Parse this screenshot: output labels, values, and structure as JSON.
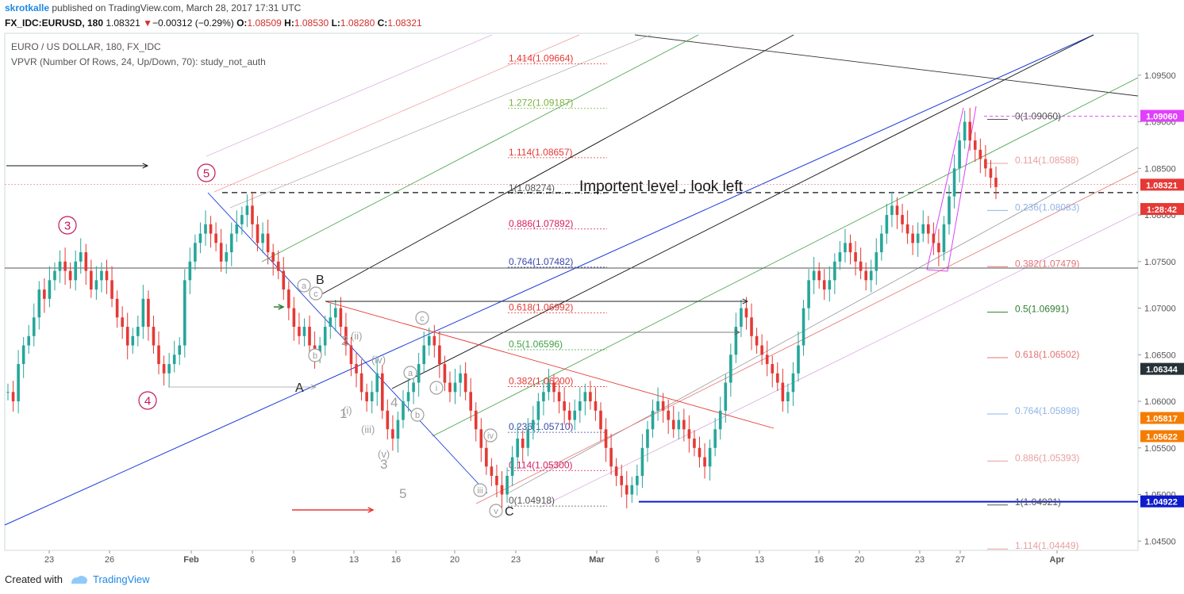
{
  "header": {
    "author": "skrotkalle",
    "published": " published on TradingView.com, March 28, 2017 17:31 UTC",
    "symbol": "FX_IDC:EURUSD, 180",
    "last": "1.08321",
    "change": "−0.00312 (−0.29%)",
    "ohlc": "O:1.08509 H:1.08530 L:1.08280 C:1.08321",
    "o_label": "O:",
    "o": "1.08509",
    "h_label": "H:",
    "h": "1.08530",
    "l_label": "L:",
    "l": "1.08280",
    "c_label": "C:",
    "c": "1.08321"
  },
  "footer": {
    "created_with": "Created with",
    "brand": "TradingView"
  },
  "colors": {
    "up": "#26a69a",
    "down": "#e53935",
    "accent": "#1e88e5",
    "fib_pink": "#e040fb"
  },
  "chart_data": {
    "type": "candlestick",
    "title": "EURO / US DOLLAR, 180, FX_IDC",
    "subtitle": "VPVR (Number Of Rows, 24, Up/Down, 70): study_not_auth",
    "ylim": [
      1.044,
      1.0995
    ],
    "y_ticks": [
      "1.09500",
      "1.09000",
      "1.08500",
      "1.08000",
      "1.07500",
      "1.07000",
      "1.06500",
      "1.06000",
      "1.05500",
      "1.05000",
      "1.04500"
    ],
    "y_tick_values": [
      1.095,
      1.09,
      1.085,
      1.08,
      1.075,
      1.07,
      1.065,
      1.06,
      1.055,
      1.05,
      1.045
    ],
    "x_ticks": [
      "23",
      "26",
      "Feb",
      "6",
      "9",
      "13",
      "16",
      "20",
      "23",
      "Mar",
      "6",
      "9",
      "13",
      "16",
      "20",
      "23",
      "27",
      "Apr"
    ],
    "x_tick_bold": [
      "Feb",
      "Mar",
      "Apr"
    ],
    "price_labels": [
      {
        "text": "1.09060",
        "value": 1.0906,
        "color": "#e040fb"
      },
      {
        "text": "1.08321",
        "value": 1.08321,
        "color": "#e53935"
      },
      {
        "text": "1:28:42",
        "value": 1.0806,
        "color": "#e53935"
      },
      {
        "text": "1.06344",
        "value": 1.06344,
        "color": "#263238"
      },
      {
        "text": "1.05817",
        "value": 1.05817,
        "color": "#f57c00"
      },
      {
        "text": "1.05622",
        "value": 1.05622,
        "color": "#f57c00"
      },
      {
        "text": "1.04922",
        "value": 1.04922,
        "color": "#0d1bcc"
      }
    ],
    "fib_left": [
      {
        "label": "1.414(1.09664)",
        "value": 1.09664,
        "color": "#e53935"
      },
      {
        "label": "1.272(1.09187)",
        "value": 1.09187,
        "color": "#7cb342"
      },
      {
        "label": "1.114(1.08657)",
        "value": 1.08657,
        "color": "#e53935"
      },
      {
        "label": "1(1.08274)",
        "value": 1.08274,
        "color": "#555555"
      },
      {
        "label": "0.886(1.07892)",
        "value": 1.07892,
        "color": "#d81b60"
      },
      {
        "label": "0.764(1.07482)",
        "value": 1.07482,
        "color": "#3949ab"
      },
      {
        "label": "0.618(1.06992)",
        "value": 1.06992,
        "color": "#e53935"
      },
      {
        "label": "0.5(1.06596)",
        "value": 1.06596,
        "color": "#43a047"
      },
      {
        "label": "0.382(1.06200)",
        "value": 1.062,
        "color": "#e53935"
      },
      {
        "label": "0.236(1.05710)",
        "value": 1.0571,
        "color": "#3949ab"
      },
      {
        "label": "0.114(1.05300)",
        "value": 1.053,
        "color": "#d81b60"
      },
      {
        "label": "0(1.04918)",
        "value": 1.04918,
        "color": "#555555"
      }
    ],
    "fib_right": [
      {
        "label": "0(1.09060)",
        "value": 1.0906,
        "color": "#555555"
      },
      {
        "label": "0.114(1.08588)",
        "value": 1.08588,
        "color": "#e8a0a0"
      },
      {
        "label": "0.236(1.08083)",
        "value": 1.08083,
        "color": "#90b4e8"
      },
      {
        "label": "0.382(1.07479)",
        "value": 1.07479,
        "color": "#e57373"
      },
      {
        "label": "0.5(1.06991)",
        "value": 1.06991,
        "color": "#2e7d32"
      },
      {
        "label": "0.618(1.06502)",
        "value": 1.06502,
        "color": "#e57373"
      },
      {
        "label": "0.764(1.05898)",
        "value": 1.05898,
        "color": "#90b4e8"
      },
      {
        "label": "0.886(1.05393)",
        "value": 1.05393,
        "color": "#e8a0a0"
      },
      {
        "label": "1(1.04921)",
        "value": 1.04921,
        "color": "#555555"
      },
      {
        "label": "1.114(1.04449)",
        "value": 1.04449,
        "color": "#e8a0a0"
      }
    ],
    "important_level": {
      "label": "Importent level , look left",
      "value": 1.0824
    },
    "support_level": 1.04922,
    "horizontal_line": 1.0743,
    "wave_labels_major": [
      "3",
      "4",
      "5"
    ],
    "wave_labels_abc": [
      "A",
      "B",
      "C"
    ],
    "wave_labels_minor_grey": [
      "1",
      "2",
      "3",
      "4",
      "5"
    ],
    "wave_labels_roman": [
      "(i)",
      "(ii)",
      "(iii)",
      "(iv)",
      "(v)"
    ],
    "wave_labels_circle": [
      "a",
      "b",
      "c",
      "i",
      "ii",
      "iii",
      "iv",
      "v"
    ],
    "close_series": [
      1.061,
      1.06,
      1.064,
      1.066,
      1.067,
      1.069,
      1.072,
      1.071,
      1.073,
      1.074,
      1.075,
      1.074,
      1.073,
      1.075,
      1.076,
      1.074,
      1.072,
      1.073,
      1.074,
      1.073,
      1.071,
      1.069,
      1.068,
      1.066,
      1.067,
      1.068,
      1.071,
      1.068,
      1.066,
      1.064,
      1.063,
      1.064,
      1.065,
      1.066,
      1.073,
      1.075,
      1.077,
      1.078,
      1.079,
      1.078,
      1.077,
      1.075,
      1.076,
      1.078,
      1.079,
      1.08,
      1.081,
      1.079,
      1.077,
      1.078,
      1.076,
      1.075,
      1.074,
      1.072,
      1.07,
      1.068,
      1.067,
      1.068,
      1.066,
      1.065,
      1.066,
      1.068,
      1.069,
      1.07,
      1.068,
      1.066,
      1.064,
      1.063,
      1.061,
      1.06,
      1.061,
      1.063,
      1.059,
      1.057,
      1.056,
      1.058,
      1.06,
      1.061,
      1.062,
      1.064,
      1.066,
      1.067,
      1.066,
      1.064,
      1.062,
      1.061,
      1.062,
      1.063,
      1.061,
      1.059,
      1.057,
      1.055,
      1.053,
      1.052,
      1.051,
      1.05,
      1.052,
      1.054,
      1.056,
      1.055,
      1.057,
      1.058,
      1.06,
      1.061,
      1.062,
      1.061,
      1.06,
      1.059,
      1.058,
      1.059,
      1.06,
      1.061,
      1.06,
      1.059,
      1.057,
      1.055,
      1.053,
      1.052,
      1.051,
      1.05,
      1.051,
      1.052,
      1.055,
      1.057,
      1.059,
      1.06,
      1.059,
      1.058,
      1.057,
      1.058,
      1.057,
      1.056,
      1.055,
      1.054,
      1.053,
      1.055,
      1.057,
      1.059,
      1.062,
      1.065,
      1.068,
      1.07,
      1.069,
      1.067,
      1.066,
      1.065,
      1.064,
      1.063,
      1.062,
      1.06,
      1.061,
      1.063,
      1.066,
      1.07,
      1.073,
      1.074,
      1.073,
      1.072,
      1.073,
      1.075,
      1.076,
      1.077,
      1.076,
      1.075,
      1.074,
      1.073,
      1.074,
      1.076,
      1.078,
      1.08,
      1.081,
      1.08,
      1.079,
      1.078,
      1.077,
      1.078,
      1.079,
      1.078,
      1.077,
      1.076,
      1.079,
      1.082,
      1.085,
      1.088,
      1.09,
      1.088,
      1.087,
      1.086,
      1.085,
      1.084,
      1.083
    ]
  }
}
